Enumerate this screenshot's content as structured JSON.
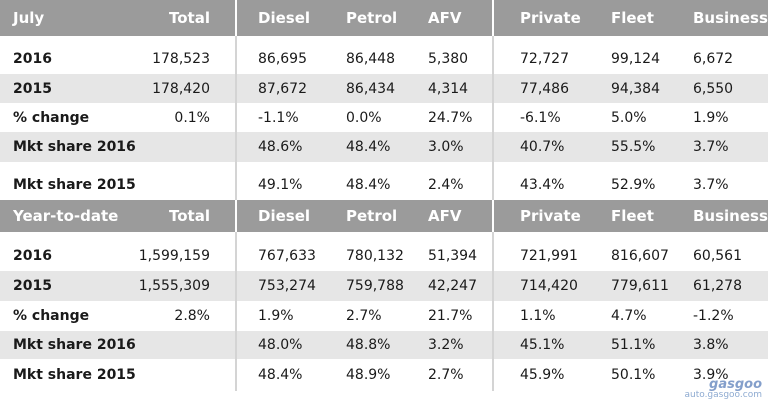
{
  "columns": [
    "Total",
    "Diesel",
    "Petrol",
    "AFV",
    "Private",
    "Fleet",
    "Business"
  ],
  "sections": [
    {
      "title": "July",
      "rows": [
        {
          "label": "2016",
          "values": [
            "178,523",
            "86,695",
            "86,448",
            "5,380",
            "72,727",
            "99,124",
            "6,672"
          ]
        },
        {
          "label": "2015",
          "values": [
            "178,420",
            "87,672",
            "86,434",
            "4,314",
            "77,486",
            "94,384",
            "6,550"
          ]
        },
        {
          "label": "% change",
          "values": [
            "0.1%",
            "-1.1%",
            "0.0%",
            "24.7%",
            "-6.1%",
            "5.0%",
            "1.9%"
          ]
        },
        {
          "label": "Mkt share 2016",
          "values": [
            "",
            "48.6%",
            "48.4%",
            "3.0%",
            "40.7%",
            "55.5%",
            "3.7%"
          ]
        },
        {
          "label": "Mkt share 2015",
          "values": [
            "",
            "49.1%",
            "48.4%",
            "2.4%",
            "43.4%",
            "52.9%",
            "3.7%"
          ]
        }
      ]
    },
    {
      "title": "Year-to-date",
      "rows": [
        {
          "label": "2016",
          "values": [
            "1,599,159",
            "767,633",
            "780,132",
            "51,394",
            "721,991",
            "816,607",
            "60,561"
          ]
        },
        {
          "label": "2015",
          "values": [
            "1,555,309",
            "753,274",
            "759,788",
            "42,247",
            "714,420",
            "779,611",
            "61,278"
          ]
        },
        {
          "label": "% change",
          "values": [
            "2.8%",
            "1.9%",
            "2.7%",
            "21.7%",
            "1.1%",
            "4.7%",
            "-1.2%"
          ]
        },
        {
          "label": "Mkt share 2016",
          "values": [
            "",
            "48.0%",
            "48.8%",
            "3.2%",
            "45.1%",
            "51.1%",
            "3.8%"
          ]
        },
        {
          "label": "Mkt share 2015",
          "values": [
            "",
            "48.4%",
            "48.9%",
            "2.7%",
            "45.9%",
            "50.1%",
            "3.9%"
          ]
        }
      ]
    }
  ],
  "watermark": {
    "logo_text": "gasgoo",
    "url_text": "auto.gasgoo.com"
  },
  "colors": {
    "header_bg": "#9b9b9b",
    "row_shade": "#e6e6e6",
    "separator": "#d4d4d4"
  }
}
